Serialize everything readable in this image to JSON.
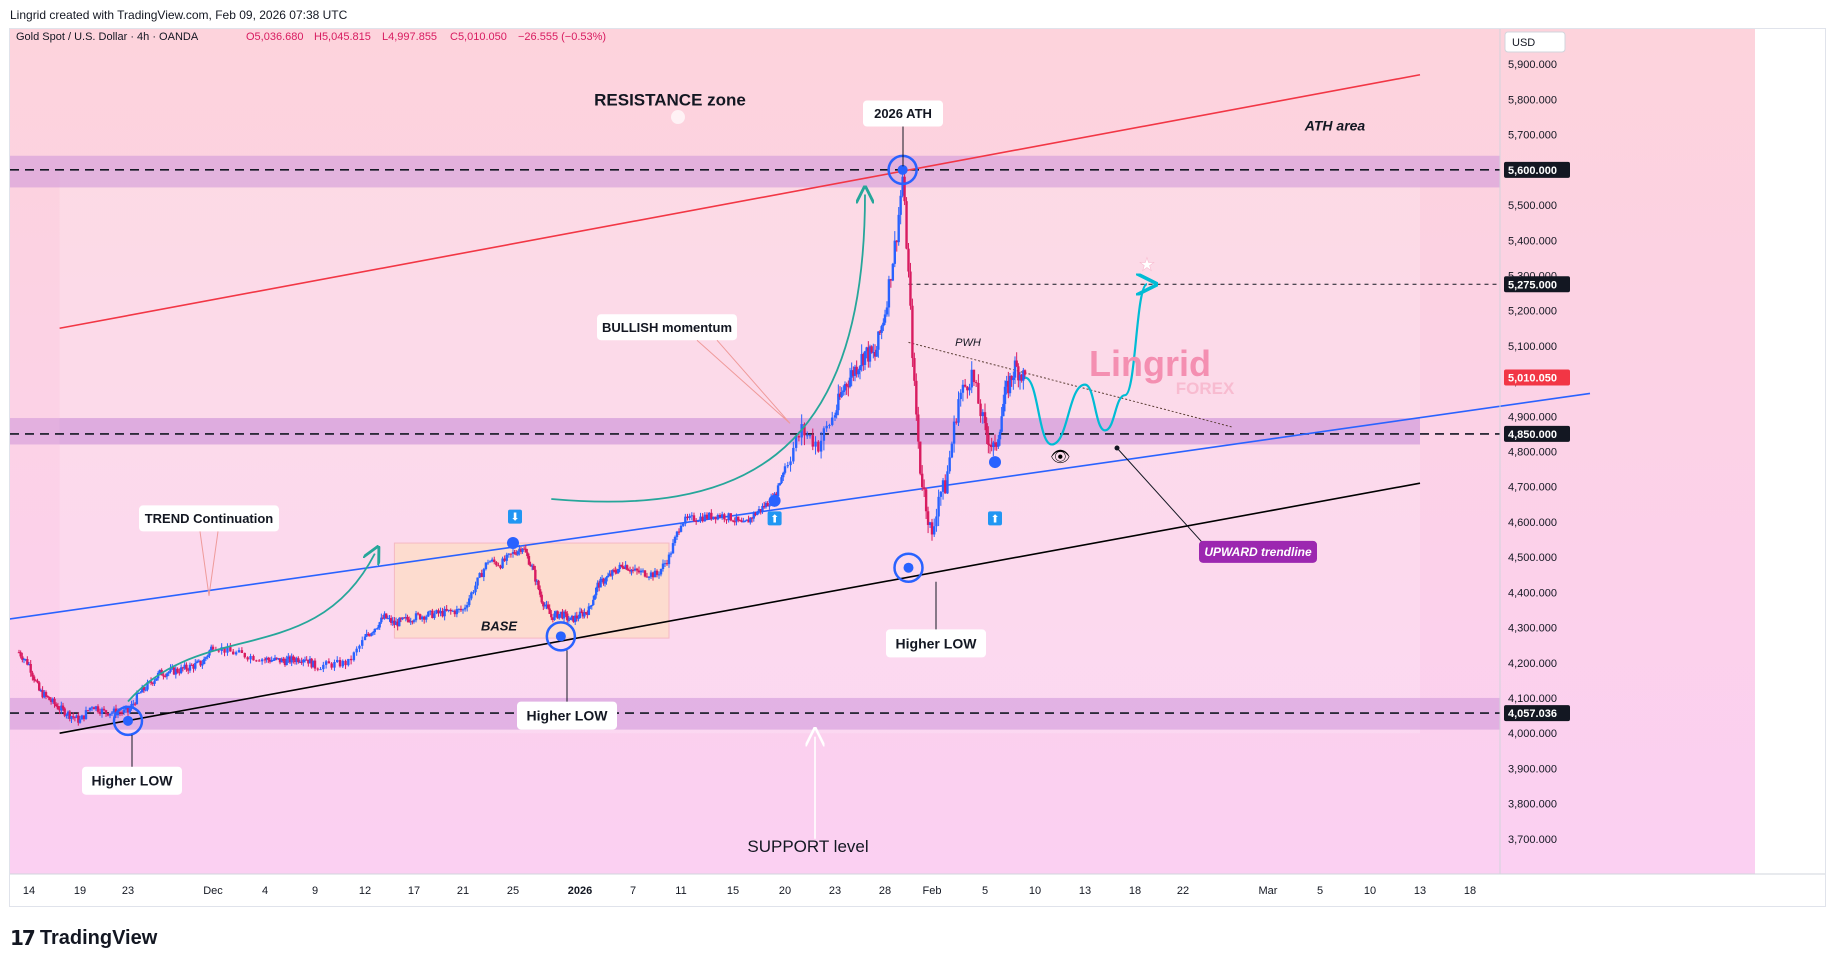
{
  "header": {
    "attribution": "Lingrid created with TradingView.com, Feb 09, 2026 07:38 UTC"
  },
  "footer": {
    "brand": "TradingView"
  },
  "colors": {
    "resistance_line": "#f23645",
    "blue_trendline": "#2962ff",
    "support_line": "#000000",
    "zone_fill": "#ce93d8",
    "candle_up": "#2962ff",
    "candle_down": "#d81b60",
    "arrow_green": "#26a69a",
    "projection_cyan": "#00bcd4",
    "last_price_badge": "#f23645",
    "upward_trendline_badge": "#9c27b0"
  },
  "chart_data": {
    "type": "candlestick",
    "symbol_info": "Gold Spot / U.S. Dollar · 4h · OANDA",
    "ohlc": {
      "open": "O5,036.680",
      "high": "H5,045.815",
      "low": "L4,997.855",
      "close": "C5,010.050",
      "change": "−26.555 (−0.53%)"
    },
    "currency": "USD",
    "ylim": [
      3600,
      6000
    ],
    "y_ticks": [
      3700,
      3800,
      3900,
      4000,
      4100,
      4200,
      4300,
      4400,
      4500,
      4600,
      4700,
      4800,
      4900,
      5000,
      5100,
      5200,
      5300,
      5400,
      5500,
      5600,
      5700,
      5800,
      5900
    ],
    "y_tick_labels": [
      "3,700.000",
      "3,800.000",
      "3,900.000",
      "4,000.000",
      "4,100.000",
      "4,200.000",
      "4,300.000",
      "4,400.000",
      "4,500.000",
      "4,600.000",
      "4,700.000",
      "4,800.000",
      "4,900.000",
      "5,000.000",
      "5,100.000",
      "5,200.000",
      "5,300.000",
      "5,400.000",
      "5,500.000",
      "5,600.000",
      "5,700.000",
      "5,800.000",
      "5,900.000"
    ],
    "x_labels": [
      {
        "label": "14",
        "date": "2025-11-14"
      },
      {
        "label": "19",
        "date": "2025-11-19"
      },
      {
        "label": "23",
        "date": "2025-11-23"
      },
      {
        "label": "Dec",
        "date": "2025-12-01"
      },
      {
        "label": "4",
        "date": "2025-12-04"
      },
      {
        "label": "9",
        "date": "2025-12-09"
      },
      {
        "label": "12",
        "date": "2025-12-12"
      },
      {
        "label": "17",
        "date": "2025-12-17"
      },
      {
        "label": "21",
        "date": "2025-12-21"
      },
      {
        "label": "25",
        "date": "2025-12-25"
      },
      {
        "label": "2026",
        "date": "2026-01-01"
      },
      {
        "label": "7",
        "date": "2026-01-07"
      },
      {
        "label": "11",
        "date": "2026-01-11"
      },
      {
        "label": "15",
        "date": "2026-01-15"
      },
      {
        "label": "20",
        "date": "2026-01-20"
      },
      {
        "label": "23",
        "date": "2026-01-23"
      },
      {
        "label": "28",
        "date": "2026-01-28"
      },
      {
        "label": "Feb",
        "date": "2026-02-01"
      },
      {
        "label": "5",
        "date": "2026-02-05"
      },
      {
        "label": "10",
        "date": "2026-02-10"
      },
      {
        "label": "13",
        "date": "2026-02-13"
      },
      {
        "label": "18",
        "date": "2026-02-18"
      },
      {
        "label": "22",
        "date": "2026-02-22"
      },
      {
        "label": "Mar",
        "date": "2026-03-01"
      },
      {
        "label": "5",
        "date": "2026-03-05"
      },
      {
        "label": "10",
        "date": "2026-03-10"
      },
      {
        "label": "13",
        "date": "2026-03-13"
      },
      {
        "label": "18",
        "date": "2026-03-18"
      }
    ],
    "price_path": [
      [
        "2025-11-13",
        4230
      ],
      [
        "2025-11-14",
        4195
      ],
      [
        "2025-11-15",
        4120
      ],
      [
        "2025-11-17",
        4070
      ],
      [
        "2025-11-19",
        4035
      ],
      [
        "2025-11-20",
        4080
      ],
      [
        "2025-11-21",
        4060
      ],
      [
        "2025-11-23",
        4060
      ],
      [
        "2025-11-24",
        4110
      ],
      [
        "2025-11-26",
        4170
      ],
      [
        "2025-11-28",
        4180
      ],
      [
        "2025-11-30",
        4200
      ],
      [
        "2025-12-01",
        4250
      ],
      [
        "2025-12-02",
        4230
      ],
      [
        "2025-12-04",
        4210
      ],
      [
        "2025-12-06",
        4205
      ],
      [
        "2025-12-08",
        4215
      ],
      [
        "2025-12-09",
        4190
      ],
      [
        "2025-12-11",
        4200
      ],
      [
        "2025-12-12",
        4270
      ],
      [
        "2025-12-14",
        4330
      ],
      [
        "2025-12-15",
        4310
      ],
      [
        "2025-12-17",
        4330
      ],
      [
        "2025-12-19",
        4340
      ],
      [
        "2025-12-21",
        4350
      ],
      [
        "2025-12-22",
        4420
      ],
      [
        "2025-12-23",
        4490
      ],
      [
        "2025-12-24",
        4480
      ],
      [
        "2025-12-25",
        4510
      ],
      [
        "2025-12-26",
        4530
      ],
      [
        "2025-12-27",
        4470
      ],
      [
        "2025-12-28",
        4380
      ],
      [
        "2025-12-29",
        4330
      ],
      [
        "2025-12-30",
        4340
      ],
      [
        "2025-12-31",
        4320
      ],
      [
        "2026-01-02",
        4350
      ],
      [
        "2026-01-03",
        4420
      ],
      [
        "2026-01-05",
        4460
      ],
      [
        "2026-01-06",
        4480
      ],
      [
        "2026-01-07",
        4460
      ],
      [
        "2026-01-09",
        4450
      ],
      [
        "2026-01-10",
        4500
      ],
      [
        "2026-01-11",
        4600
      ],
      [
        "2026-01-12",
        4610
      ],
      [
        "2026-01-14",
        4620
      ],
      [
        "2026-01-15",
        4610
      ],
      [
        "2026-01-16",
        4590
      ],
      [
        "2026-01-17",
        4620
      ],
      [
        "2026-01-19",
        4670
      ],
      [
        "2026-01-20",
        4760
      ],
      [
        "2026-01-21",
        4860
      ],
      [
        "2026-01-22",
        4820
      ],
      [
        "2026-01-23",
        4910
      ],
      [
        "2026-01-24",
        4990
      ],
      [
        "2026-01-26",
        5080
      ],
      [
        "2026-01-27",
        5070
      ],
      [
        "2026-01-28",
        5200
      ],
      [
        "2026-01-29",
        5420
      ],
      [
        "2026-01-29T12",
        5580
      ],
      [
        "2026-01-30",
        5300
      ],
      [
        "2026-01-30T12",
        4980
      ],
      [
        "2026-01-31",
        4750
      ],
      [
        "2026-02-01",
        4550
      ],
      [
        "2026-02-01T12",
        4680
      ],
      [
        "2026-02-02",
        4700
      ],
      [
        "2026-02-03",
        4950
      ],
      [
        "2026-02-04",
        5020
      ],
      [
        "2026-02-05",
        4860
      ],
      [
        "2026-02-06",
        4800
      ],
      [
        "2026-02-07",
        4960
      ],
      [
        "2026-02-08",
        5040
      ],
      [
        "2026-02-09",
        5010
      ]
    ],
    "projection_path": [
      [
        "2026-02-09",
        5010
      ],
      [
        "2026-02-11",
        4820
      ],
      [
        "2026-02-13",
        4990
      ],
      [
        "2026-02-15",
        4860
      ],
      [
        "2026-02-17",
        4960
      ],
      [
        "2026-02-19",
        5275
      ]
    ],
    "lines": {
      "resistance": [
        [
          "2025-11-17",
          5150
        ],
        [
          "2026-03-13",
          5870
        ]
      ],
      "blue_trend": [
        [
          "2025-11-11",
          4320
        ],
        [
          "2026-03-30",
          4965
        ]
      ],
      "support": [
        [
          "2025-11-17",
          4000
        ],
        [
          "2026-03-13",
          4710
        ]
      ],
      "pwh": [
        [
          "2026-01-30",
          5110
        ],
        [
          "2026-02-26",
          4870
        ]
      ]
    },
    "levels": [
      {
        "value": 5600,
        "label": "5,600.000"
      },
      {
        "value": 5275,
        "label": "5,275.000"
      },
      {
        "value": 5010.05,
        "label": "5,010.050"
      },
      {
        "value": 4850,
        "label": "4,850.000"
      },
      {
        "value": 4057.036,
        "label": "4,057.036"
      }
    ],
    "zones": [
      {
        "from": 5550,
        "to": 5640
      },
      {
        "from": 4820,
        "to": 4895
      },
      {
        "from": 4010,
        "to": 4100
      }
    ],
    "base_box": {
      "x0": "2025-12-15",
      "x1": "2026-01-10",
      "top": 4540,
      "bottom": 4270
    },
    "annotations": {
      "resistance_zone": "RESISTANCE zone",
      "ath": "2026 ATH",
      "ath_area": "ATH area",
      "bullish_momentum": "BULLISH momentum",
      "trend_continuation": "TREND Continuation",
      "base": "BASE",
      "pwh": "PWH",
      "higher_low_1": "Higher LOW",
      "higher_low_2": "Higher LOW",
      "higher_low_3": "Higher LOW",
      "support_level": "SUPPORT level",
      "upward_trendline": "UPWARD trendline",
      "watermark_main": "Lingrid",
      "watermark_sub": "FOREX"
    },
    "pivots": [
      {
        "date": "2025-11-23",
        "value": 4035,
        "kind": "circle"
      },
      {
        "date": "2025-12-30",
        "value": 4275,
        "kind": "circle"
      },
      {
        "date": "2026-01-30",
        "value": 4470,
        "kind": "circle"
      },
      {
        "date": "2026-01-29T12",
        "value": 5600,
        "kind": "circle"
      },
      {
        "date": "2025-12-25",
        "value": 4540,
        "kind": "dot"
      },
      {
        "date": "2026-01-19",
        "value": 4660,
        "kind": "dot"
      },
      {
        "date": "2026-02-06",
        "value": 4770,
        "kind": "dot"
      }
    ]
  }
}
